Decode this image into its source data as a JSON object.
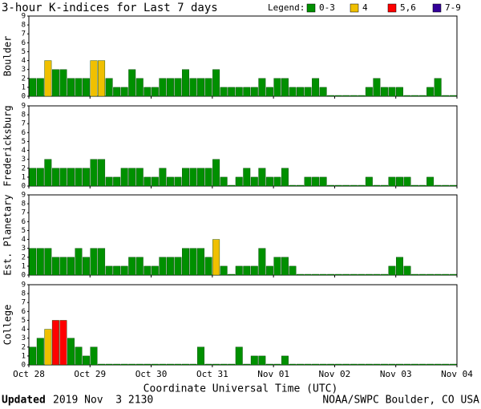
{
  "chart_data": {
    "type": "bar",
    "title": "3-hour K-indices for Last 7 days",
    "legend_title": "Legend:",
    "legend": [
      {
        "label": "0-3",
        "color": "#009000"
      },
      {
        "label": "4",
        "color": "#f0c000"
      },
      {
        "label": "5,6",
        "color": "#ff0000"
      },
      {
        "label": "7-9",
        "color": "#330099"
      }
    ],
    "xlabel": "Coordinate Universal Time (UTC)",
    "xlim": [
      0,
      56
    ],
    "xticks": [
      {
        "value": 0,
        "label": "Oct 28"
      },
      {
        "value": 8,
        "label": "Oct 29"
      },
      {
        "value": 16,
        "label": "Oct 30"
      },
      {
        "value": 24,
        "label": "Oct 31"
      },
      {
        "value": 32,
        "label": "Nov 01"
      },
      {
        "value": 40,
        "label": "Nov 02"
      },
      {
        "value": 48,
        "label": "Nov 03"
      },
      {
        "value": 56,
        "label": "Nov 04"
      }
    ],
    "ylim": [
      0,
      9
    ],
    "yticks": [
      0,
      1,
      2,
      3,
      4,
      5,
      6,
      7,
      8,
      9
    ],
    "panels": [
      {
        "name": "Boulder",
        "values": [
          2,
          2,
          4,
          3,
          3,
          2,
          2,
          2,
          4,
          4,
          2,
          1,
          1,
          3,
          2,
          1,
          1,
          2,
          2,
          2,
          3,
          2,
          2,
          2,
          3,
          1,
          1,
          1,
          1,
          1,
          2,
          1,
          2,
          2,
          1,
          1,
          1,
          2,
          1,
          0,
          0,
          0,
          0,
          0,
          1,
          2,
          1,
          1,
          1,
          0,
          0,
          0,
          1,
          2,
          0,
          0
        ]
      },
      {
        "name": "Fredericksburg",
        "values": [
          2,
          2,
          3,
          2,
          2,
          2,
          2,
          2,
          3,
          3,
          1,
          1,
          2,
          2,
          2,
          1,
          1,
          2,
          1,
          1,
          2,
          2,
          2,
          2,
          3,
          1,
          0,
          1,
          2,
          1,
          2,
          1,
          1,
          2,
          0,
          0,
          1,
          1,
          1,
          0,
          0,
          0,
          0,
          0,
          1,
          0,
          0,
          1,
          1,
          1,
          0,
          0,
          1,
          0,
          0,
          0
        ]
      },
      {
        "name": "Est. Planetary",
        "values": [
          3,
          3,
          3,
          2,
          2,
          2,
          3,
          2,
          3,
          3,
          1,
          1,
          1,
          2,
          2,
          1,
          1,
          2,
          2,
          2,
          3,
          3,
          3,
          2,
          4,
          1,
          0,
          1,
          1,
          1,
          3,
          1,
          2,
          2,
          1,
          0,
          0,
          0,
          0,
          0,
          0,
          0,
          0,
          0,
          0,
          0,
          0,
          1,
          2,
          1,
          0,
          0,
          0,
          0,
          0,
          0
        ]
      },
      {
        "name": "College",
        "values": [
          2,
          3,
          4,
          5,
          5,
          3,
          2,
          1,
          2,
          0,
          0,
          0,
          0,
          0,
          0,
          0,
          0,
          0,
          0,
          0,
          0,
          0,
          2,
          0,
          0,
          0,
          0,
          2,
          0,
          1,
          1,
          0,
          0,
          1,
          0,
          0,
          0,
          0,
          0,
          0,
          0,
          0,
          0,
          0,
          0,
          0,
          0,
          0,
          0,
          0,
          0,
          0,
          0,
          0,
          0,
          0
        ]
      }
    ]
  },
  "footer": {
    "updated_label": "Updated",
    "updated_time": "2019 Nov  3 2130",
    "credit": "NOAA/SWPC Boulder, CO USA"
  }
}
